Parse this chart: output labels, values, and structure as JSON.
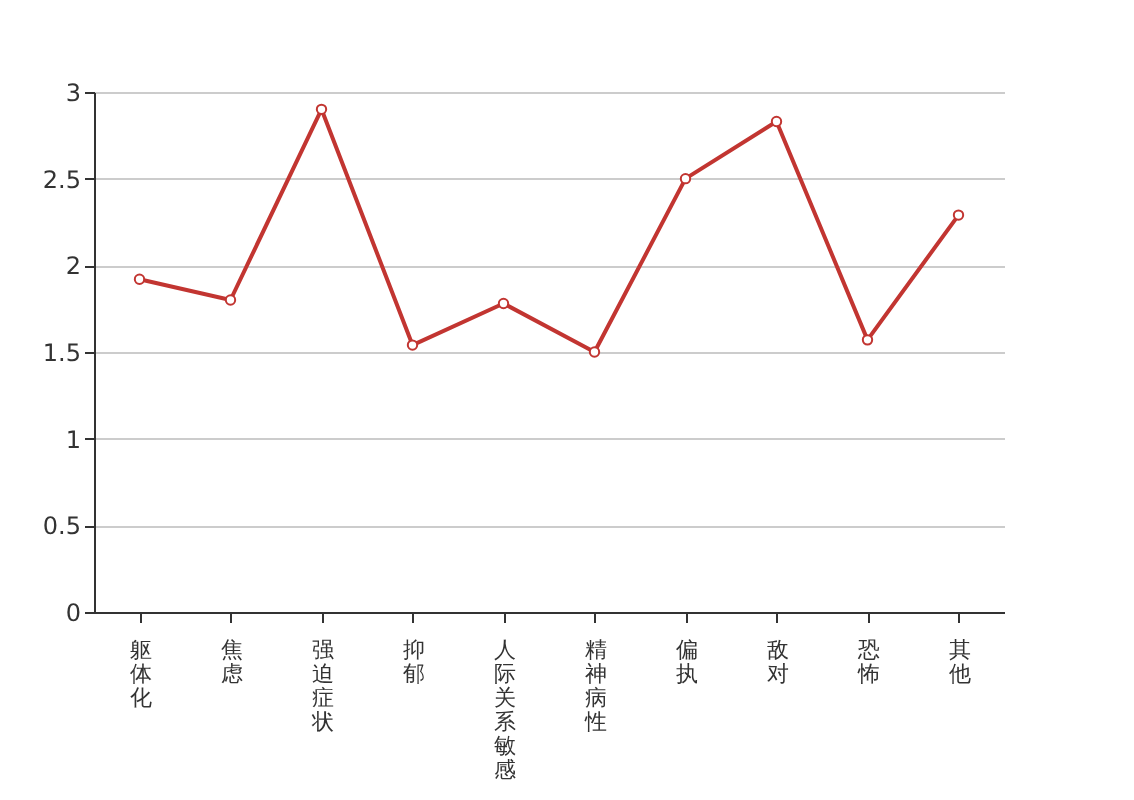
{
  "chart_data": {
    "type": "line",
    "categories": [
      "躯体化",
      "焦虑",
      "强迫症状",
      "抑郁",
      "人际关系敏感",
      "精神病性",
      "偏执",
      "敌对",
      "恐怖",
      "其他"
    ],
    "series": [
      {
        "color": "#c23531",
        "values": [
          1.92,
          1.8,
          2.9,
          1.54,
          1.78,
          1.5,
          2.5,
          2.83,
          1.57,
          2.29
        ]
      }
    ],
    "ylim": [
      0,
      3
    ],
    "yticks": [
      0,
      0.5,
      1,
      1.5,
      2,
      2.5,
      3
    ],
    "grid": "y",
    "marker": "circle",
    "line_style": "solid"
  }
}
